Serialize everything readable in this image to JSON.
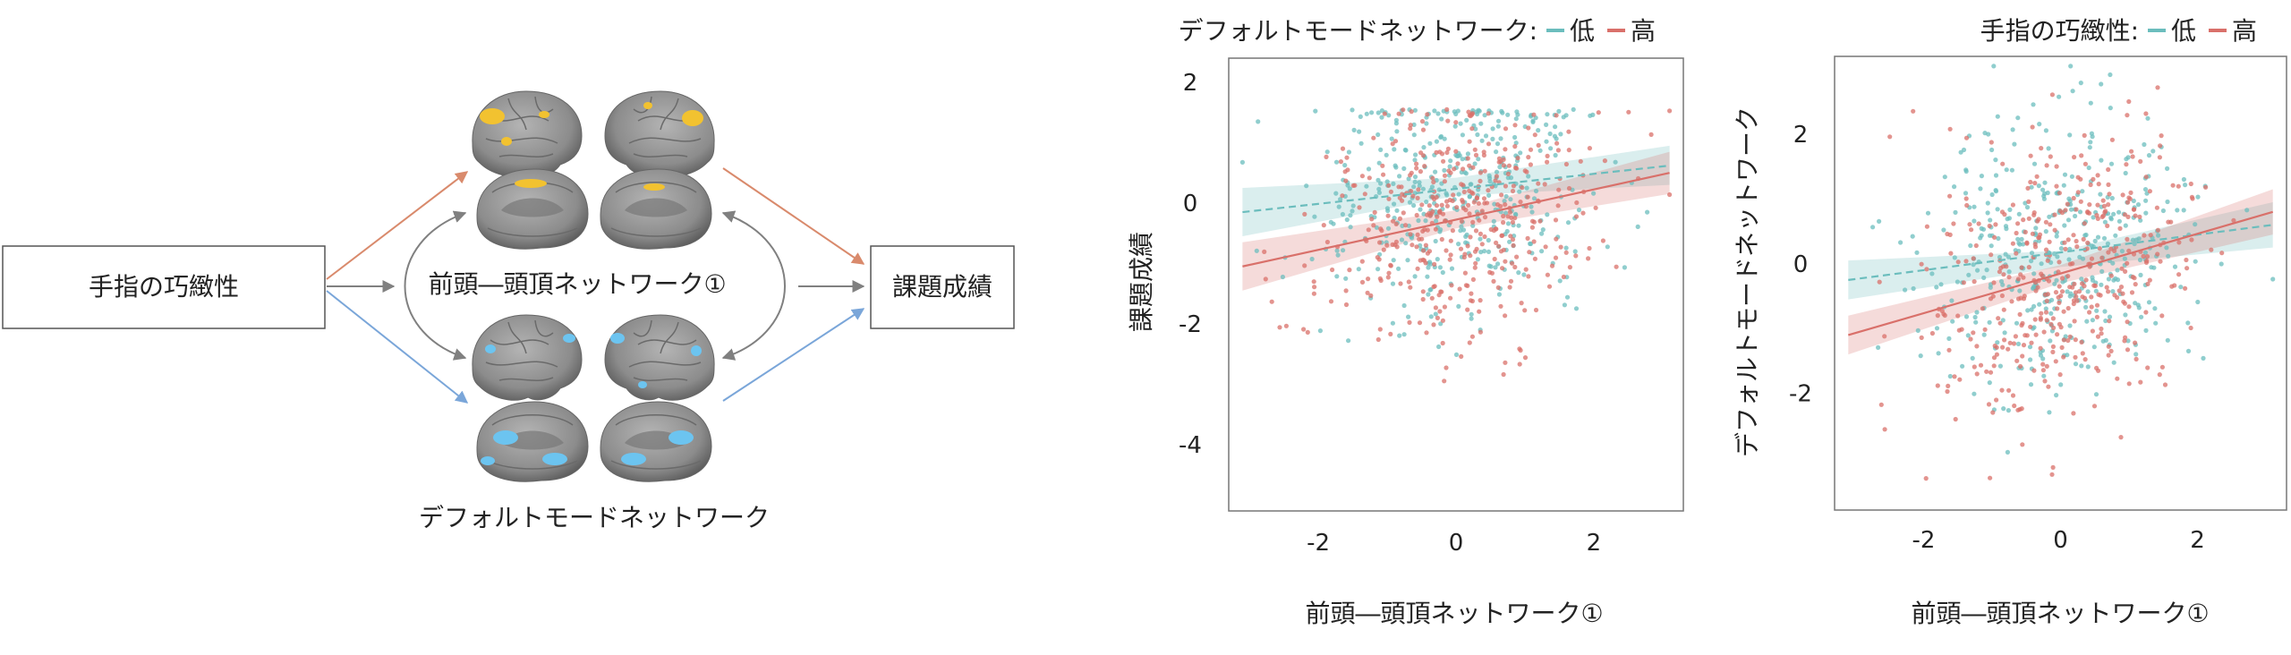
{
  "diagram": {
    "source_label": "手指の巧緻性",
    "target_label": "課題成績",
    "network_top_label": "前頭―頭頂ネットワーク①",
    "network_bottom_label": "デフォルトモードネットワーク",
    "colors": {
      "arrow_top": "#d98a6c",
      "arrow_bottom": "#7aa6d9",
      "arrow_gray": "#808080",
      "brain_gray": "#8a8a8a",
      "highlight_top": "#f2c230",
      "highlight_bottom": "#6cc4f0"
    },
    "icons": [
      "brain-lateral-icon",
      "brain-medial-icon"
    ]
  },
  "chart_data": [
    {
      "type": "scatter",
      "legend_title": "デフォルトモードネットワーク:",
      "legend_items": [
        "低",
        "高"
      ],
      "legend_placement": "top",
      "xlabel": "前頭―頭頂ネットワーク①",
      "ylabel": "課題成績",
      "xlim": [
        -3.3,
        3.3
      ],
      "ylim": [
        -5.1,
        2.4
      ],
      "xticks": [
        "-2",
        "0",
        "2"
      ],
      "yticks": [
        "2",
        "0",
        "-2",
        "-4"
      ],
      "grid": false,
      "series": [
        {
          "name": "低",
          "color": "#6bbdbd",
          "line": {
            "x": [
              -3.1,
              3.1
            ],
            "y": [
              -0.15,
              0.62
            ],
            "style": "dashed"
          },
          "band": {
            "x": [
              -3.1,
              0,
              3.1
            ],
            "upper": [
              0.25,
              0.42,
              0.95
            ],
            "lower": [
              -0.55,
              0.12,
              0.3
            ]
          }
        },
        {
          "name": "高",
          "color": "#d9706a",
          "line": {
            "x": [
              -3.1,
              3.1
            ],
            "y": [
              -1.05,
              0.5
            ],
            "style": "solid"
          },
          "band": {
            "x": [
              -3.1,
              0,
              3.1
            ],
            "upper": [
              -0.65,
              -0.12,
              0.85
            ],
            "lower": [
              -1.45,
              -0.42,
              0.15
            ]
          }
        }
      ],
      "points": {
        "count_per_series": 420,
        "x_spread": 1.0,
        "y_spread": 1.0,
        "note_cloud": "dense cluster near (0,0.5)"
      }
    },
    {
      "type": "scatter",
      "legend_title": "手指の巧緻性:",
      "legend_items": [
        "低",
        "高"
      ],
      "legend_placement": "top-right",
      "xlabel": "前頭―頭頂ネットワーク①",
      "ylabel": "デフォルトモードネットワーク",
      "xlim": [
        -3.3,
        3.3
      ],
      "ylim": [
        -3.8,
        3.2
      ],
      "xticks": [
        "-2",
        "0",
        "2"
      ],
      "yticks": [
        "2",
        "0",
        "-2"
      ],
      "grid": false,
      "series": [
        {
          "name": "低",
          "color": "#6bbdbd",
          "line": {
            "x": [
              -3.1,
              3.1
            ],
            "y": [
              -0.25,
              0.6
            ],
            "style": "dashed"
          },
          "band": {
            "x": [
              -3.1,
              0,
              3.1
            ],
            "upper": [
              0.05,
              0.2,
              0.95
            ],
            "lower": [
              -0.55,
              -0.05,
              0.25
            ]
          }
        },
        {
          "name": "高",
          "color": "#d9706a",
          "line": {
            "x": [
              -3.1,
              3.1
            ],
            "y": [
              -1.1,
              0.8
            ],
            "style": "solid"
          },
          "band": {
            "x": [
              -3.1,
              0,
              3.1
            ],
            "upper": [
              -0.8,
              -0.02,
              1.15
            ],
            "lower": [
              -1.4,
              -0.3,
              0.45
            ]
          }
        }
      ],
      "points": {
        "count_per_series": 420,
        "x_spread": 1.0,
        "y_spread": 1.05
      }
    }
  ]
}
